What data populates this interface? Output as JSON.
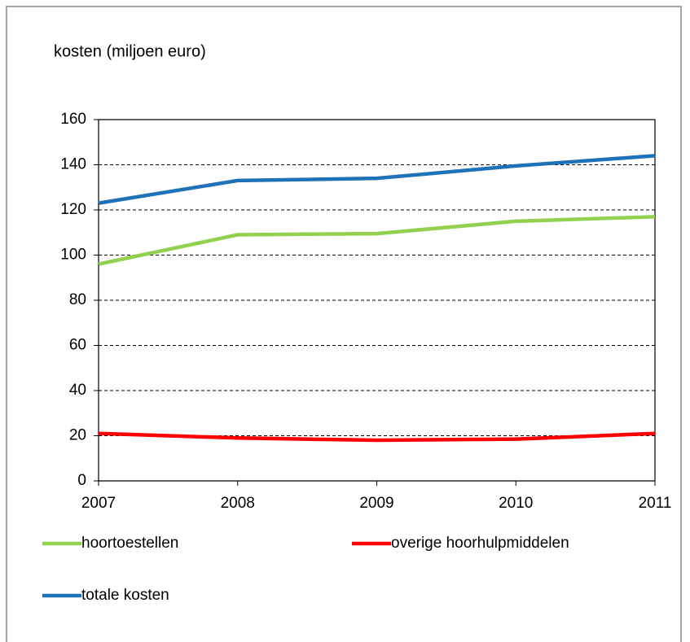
{
  "chart_data": {
    "type": "line",
    "title": "kosten (miljoen euro)",
    "x": [
      2007,
      2008,
      2009,
      2010,
      2011
    ],
    "series": [
      {
        "name": "hoortoestellen",
        "color": "#92d050",
        "values": [
          96,
          109,
          109.5,
          115,
          117
        ]
      },
      {
        "name": "overige hoorhulpmiddelen",
        "color": "#ff0000",
        "values": [
          21,
          19,
          18,
          18.5,
          21
        ]
      },
      {
        "name": "totale kosten",
        "color": "#1f72b8",
        "values": [
          123,
          133,
          134,
          139.5,
          144
        ]
      }
    ],
    "xlim": [
      2007,
      2011
    ],
    "xticks": [
      2007,
      2008,
      2009,
      2010,
      2011
    ],
    "ylim": [
      0,
      160
    ],
    "yticks": [
      0,
      20,
      40,
      60,
      80,
      100,
      120,
      140,
      160
    ],
    "grid": true,
    "legend": "bottom"
  }
}
